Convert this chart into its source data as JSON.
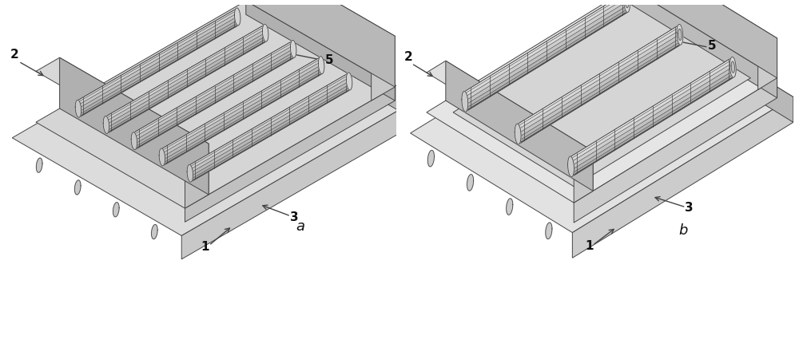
{
  "fig_bg": "#ffffff",
  "line_color": "#444444",
  "label_a": "a",
  "label_b": "b",
  "label_fontsize": 13,
  "annotation_fontsize": 11,
  "annotation_fontweight": "bold",
  "face_top": "#e8e8e8",
  "face_left": "#d0d0d0",
  "face_right": "#c0c0c0",
  "face_dark": "#b0b0b0"
}
